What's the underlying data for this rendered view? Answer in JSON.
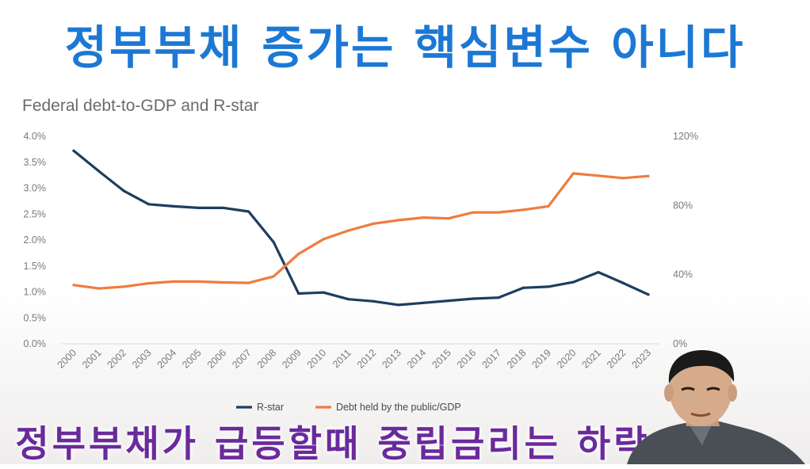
{
  "captions": {
    "top": "정부부채 증가는 핵심변수 아니다",
    "bottom": "정부부채가 급등할때 중립금리는 하락"
  },
  "colors": {
    "rstar": "#1d3e5f",
    "debt": "#ef7c3d",
    "top_caption": "#1c78d4",
    "bottom_caption": "#6a2a9c"
  },
  "chart_data": {
    "type": "line",
    "title": "Federal debt-to-GDP and R-star",
    "x": [
      "2000",
      "2001",
      "2002",
      "2003",
      "2004",
      "2005",
      "2006",
      "2007",
      "2008",
      "2009",
      "2010",
      "2011",
      "2012",
      "2013",
      "2014",
      "2015",
      "2016",
      "2017",
      "2018",
      "2019",
      "2020",
      "2021",
      "2022",
      "2023"
    ],
    "y_left": {
      "ylim": [
        0,
        4.0
      ],
      "ticks": [
        0,
        0.5,
        1.0,
        1.5,
        2.0,
        2.5,
        3.0,
        3.5,
        4.0
      ],
      "tick_labels": [
        "0.0%",
        "0.5%",
        "1.0%",
        "1.5%",
        "2.0%",
        "2.5%",
        "3.0%",
        "3.5%",
        "4.0%"
      ]
    },
    "y_right": {
      "ylim": [
        0,
        120
      ],
      "ticks": [
        0,
        40,
        80,
        120
      ],
      "tick_labels": [
        "0%",
        "40%",
        "80%",
        "120%"
      ]
    },
    "series": [
      {
        "name": "R-star",
        "axis": "left",
        "color": "#1d3e5f",
        "values": [
          3.72,
          3.33,
          2.95,
          2.69,
          2.65,
          2.62,
          2.62,
          2.55,
          1.96,
          0.97,
          0.99,
          0.86,
          0.82,
          0.75,
          0.79,
          0.83,
          0.87,
          0.89,
          1.08,
          1.1,
          1.19,
          1.38,
          1.17,
          0.95
        ]
      },
      {
        "name": "Debt held by the public/GDP",
        "axis": "right",
        "color": "#ef7c3d",
        "values": [
          34,
          32,
          33,
          35,
          36,
          36,
          35.5,
          35.2,
          39,
          52,
          60.5,
          65.5,
          69.5,
          71.5,
          73,
          72.5,
          76,
          76,
          77.5,
          79.5,
          98.5,
          97.2,
          95.8,
          97
        ]
      }
    ],
    "legend_position": "bottom-center",
    "grid": false
  }
}
